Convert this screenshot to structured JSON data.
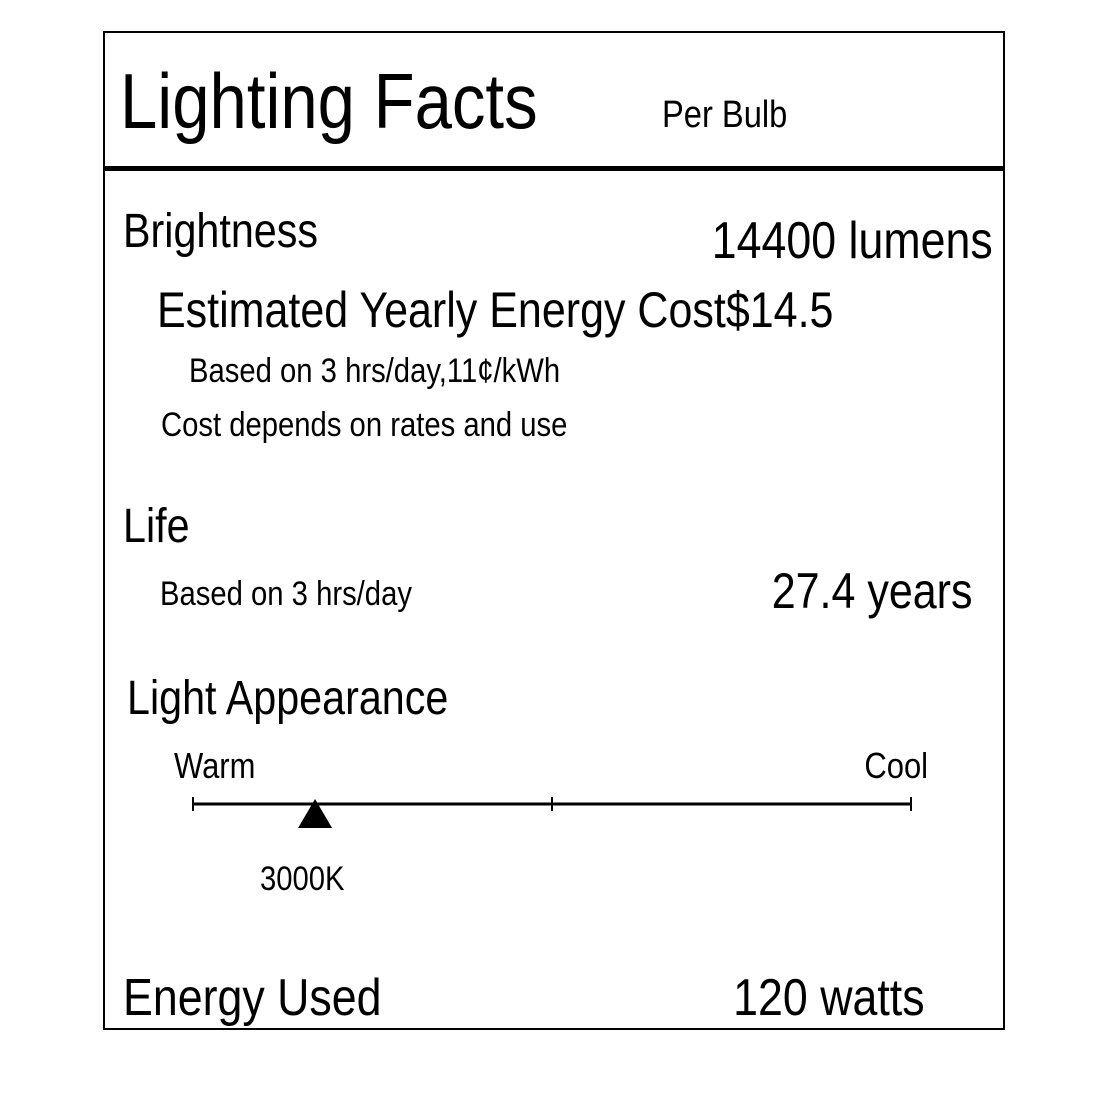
{
  "header": {
    "title": "Lighting Facts",
    "subtitle": "Per Bulb"
  },
  "brightness": {
    "label": "Brightness",
    "value": "14400 lumens"
  },
  "energy_cost": {
    "label": "Estimated Yearly Energy Cost",
    "value": "$14.5",
    "basis": "Based on 3 hrs/day,11¢/kWh",
    "note": "Cost depends on rates and use"
  },
  "life": {
    "label": "Life",
    "basis": "Based on 3 hrs/day",
    "value": "27.4 years"
  },
  "light_appearance": {
    "label": "Light Appearance",
    "warm_label": "Warm",
    "cool_label": "Cool",
    "value": "3000K",
    "marker_fraction": 0.17
  },
  "energy_used": {
    "label": "Energy Used",
    "value": "120 watts"
  }
}
